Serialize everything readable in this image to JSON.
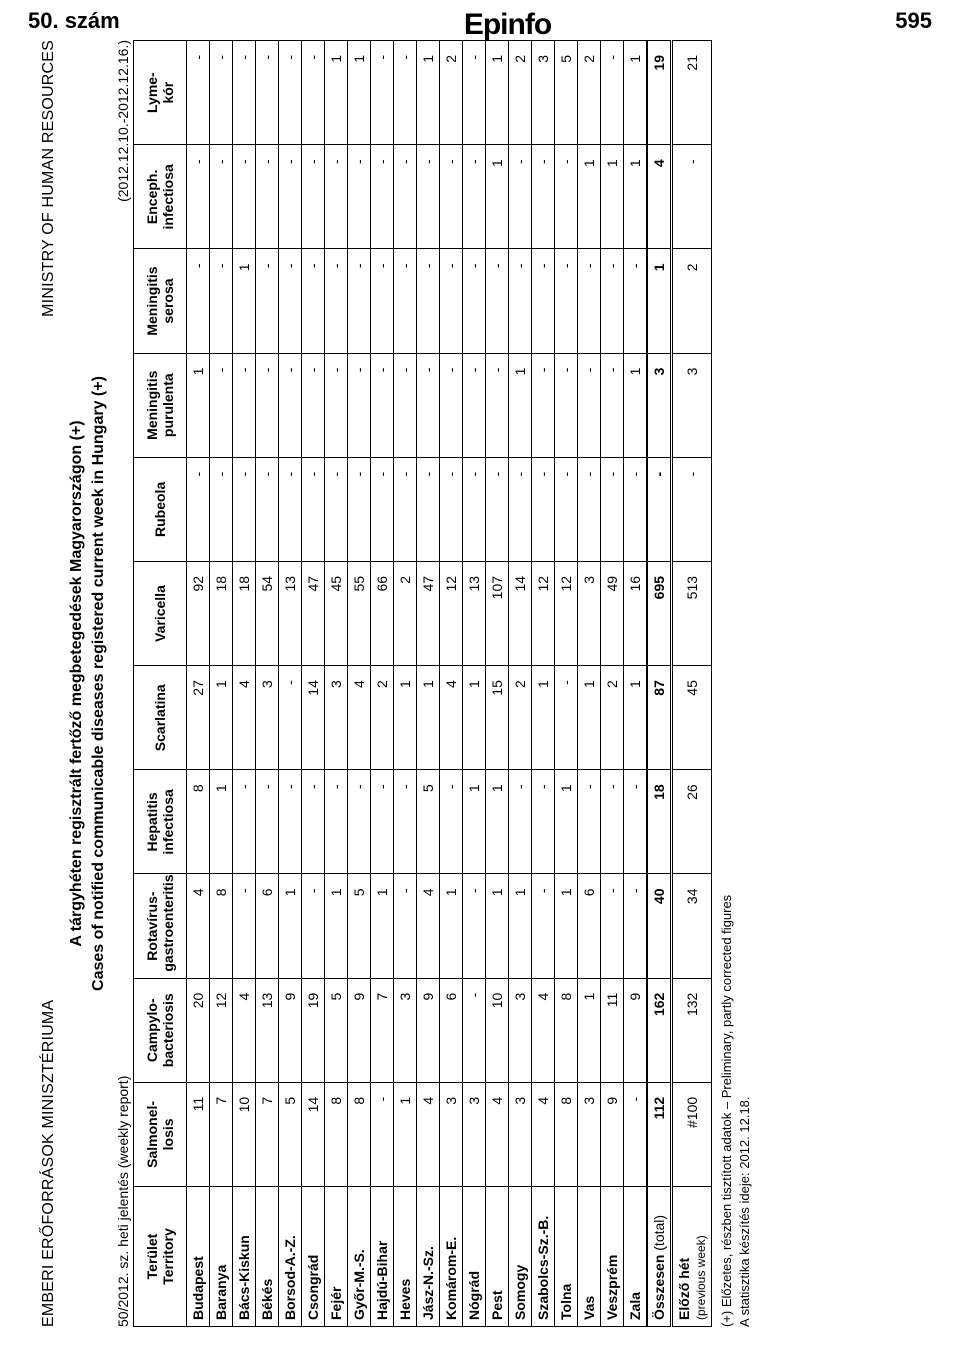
{
  "header": {
    "issue": "50. szám",
    "brand": "Epinfo",
    "page": "595"
  },
  "ministry": {
    "hu": "EMBERI ERŐFORRÁSOK MINISZTÉRIUMA",
    "en": "MINISTRY OF HUMAN RESOURCES"
  },
  "title": {
    "hu": "A tárgyhéten regisztrált fertőző megbetegedések Magyarországon (+)",
    "en": "Cases of notified communicable diseases registered current week in Hungary (+)"
  },
  "subhead": {
    "left": "50/2012. sz. heti jelentés (weekly report)",
    "right": "(2012.12.10.-2012.12.16.)"
  },
  "columns": [
    {
      "line1": "Terület",
      "line2": "Territory"
    },
    {
      "line1": "Salmonel-",
      "line2": "losis"
    },
    {
      "line1": "Campylo-",
      "line2": "bacteriosis"
    },
    {
      "line1": "Rotavírus-",
      "line2": "gastroenteritis"
    },
    {
      "line1": "Hepatitis",
      "line2": "infectiosa"
    },
    {
      "line1": "Scarlatina",
      "line2": ""
    },
    {
      "line1": "Varicella",
      "line2": ""
    },
    {
      "line1": "Rubeola",
      "line2": ""
    },
    {
      "line1": "Meningitis",
      "line2": "purulenta"
    },
    {
      "line1": "Meningitis",
      "line2": "serosa"
    },
    {
      "line1": "Enceph.",
      "line2": "infectiosa"
    },
    {
      "line1": "Lyme-",
      "line2": "kór"
    }
  ],
  "rows": [
    {
      "label": "Budapest",
      "v": [
        "11",
        "20",
        "4",
        "8",
        "27",
        "92",
        "-",
        "1",
        "-",
        "-",
        "-"
      ]
    },
    {
      "label": "Baranya",
      "v": [
        "7",
        "12",
        "8",
        "1",
        "1",
        "18",
        "-",
        "-",
        "-",
        "-",
        "-"
      ]
    },
    {
      "label": "Bács-Kiskun",
      "v": [
        "10",
        "4",
        "-",
        "-",
        "4",
        "18",
        "-",
        "-",
        "1",
        "-",
        "-"
      ]
    },
    {
      "label": "Békés",
      "v": [
        "7",
        "13",
        "6",
        "-",
        "3",
        "54",
        "-",
        "-",
        "-",
        "-",
        "-"
      ]
    },
    {
      "label": "Borsod-A.-Z.",
      "v": [
        "5",
        "9",
        "1",
        "-",
        "-",
        "13",
        "-",
        "-",
        "-",
        "-",
        "-"
      ]
    },
    {
      "label": "Csongrád",
      "v": [
        "14",
        "19",
        "-",
        "-",
        "14",
        "47",
        "-",
        "-",
        "-",
        "-",
        "-"
      ]
    },
    {
      "label": "Fejér",
      "v": [
        "8",
        "5",
        "1",
        "-",
        "3",
        "45",
        "-",
        "-",
        "-",
        "-",
        "1"
      ]
    },
    {
      "label": "Győr-M.-S.",
      "v": [
        "8",
        "9",
        "5",
        "-",
        "4",
        "55",
        "-",
        "-",
        "-",
        "-",
        "1"
      ]
    },
    {
      "label": "Hajdú-Bihar",
      "v": [
        "-",
        "7",
        "1",
        "-",
        "2",
        "66",
        "-",
        "-",
        "-",
        "-",
        "-"
      ]
    },
    {
      "label": "Heves",
      "v": [
        "1",
        "3",
        "-",
        "-",
        "1",
        "2",
        "-",
        "-",
        "-",
        "-",
        "-"
      ]
    },
    {
      "label": "Jász-N.-Sz.",
      "v": [
        "4",
        "9",
        "4",
        "5",
        "1",
        "47",
        "-",
        "-",
        "-",
        "-",
        "1"
      ]
    },
    {
      "label": "Komárom-E.",
      "v": [
        "3",
        "6",
        "1",
        "-",
        "4",
        "12",
        "-",
        "-",
        "-",
        "-",
        "2"
      ]
    },
    {
      "label": "Nógrád",
      "v": [
        "3",
        "-",
        "-",
        "1",
        "1",
        "13",
        "-",
        "-",
        "-",
        "-",
        "-"
      ]
    },
    {
      "label": "Pest",
      "v": [
        "4",
        "10",
        "1",
        "1",
        "15",
        "107",
        "-",
        "-",
        "-",
        "1",
        "1"
      ]
    },
    {
      "label": "Somogy",
      "v": [
        "3",
        "3",
        "1",
        "-",
        "2",
        "14",
        "-",
        "1",
        "-",
        "-",
        "2"
      ]
    },
    {
      "label": "Szabolcs-Sz.-B.",
      "v": [
        "4",
        "4",
        "-",
        "-",
        "1",
        "12",
        "-",
        "-",
        "-",
        "-",
        "3"
      ]
    },
    {
      "label": "Tolna",
      "v": [
        "8",
        "8",
        "1",
        "1",
        "-",
        "12",
        "-",
        "-",
        "-",
        "-",
        "5"
      ]
    },
    {
      "label": "Vas",
      "v": [
        "3",
        "1",
        "6",
        "-",
        "1",
        "3",
        "-",
        "-",
        "-",
        "1",
        "2"
      ]
    },
    {
      "label": "Veszprém",
      "v": [
        "9",
        "11",
        "-",
        "-",
        "2",
        "49",
        "-",
        "-",
        "-",
        "1",
        "-"
      ]
    },
    {
      "label": "Zala",
      "v": [
        "-",
        "9",
        "-",
        "-",
        "1",
        "16",
        "-",
        "1",
        "-",
        "1",
        "1"
      ]
    }
  ],
  "totals": {
    "label": "Összesen",
    "paren": "(total)",
    "v": [
      "112",
      "162",
      "40",
      "18",
      "87",
      "695",
      "-",
      "3",
      "1",
      "4",
      "19"
    ]
  },
  "prev": {
    "label": "Előző hét",
    "paren": "(previous week)",
    "v": [
      "#100",
      "132",
      "34",
      "26",
      "45",
      "513",
      "-",
      "3",
      "2",
      "-",
      "21"
    ]
  },
  "footnotes": {
    "l1": "(+) Előzetes, részben tisztított adatok – Preliminary, partly corrected figures",
    "l2": "A statisztika készítés ideje: 2012. 12.18."
  }
}
